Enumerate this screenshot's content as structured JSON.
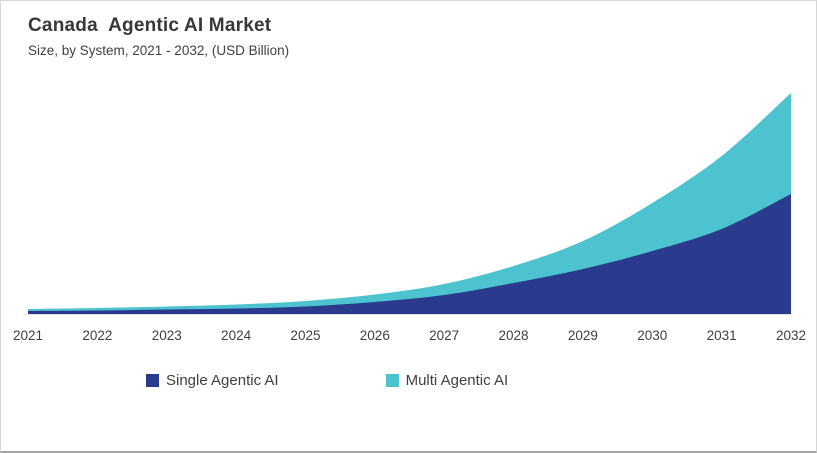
{
  "chart_data": {
    "type": "area",
    "stacked": true,
    "title": "Canada  Agentic AI Market",
    "subtitle": "Size, by System, 2021 - 2032, (USD Billion)",
    "unit": "USD Billion",
    "categories": [
      "2021",
      "2022",
      "2023",
      "2024",
      "2025",
      "2026",
      "2027",
      "2028",
      "2029",
      "2030",
      "2031",
      "2032"
    ],
    "series": [
      {
        "name": "Single Agentic AI",
        "color": "#2a3a8d",
        "values": [
          0.03,
          0.035,
          0.045,
          0.055,
          0.075,
          0.12,
          0.19,
          0.31,
          0.45,
          0.63,
          0.85,
          1.2
        ]
      },
      {
        "name": "Multi Agentic AI",
        "color": "#4cc3cf",
        "values": [
          0.02,
          0.025,
          0.03,
          0.04,
          0.055,
          0.075,
          0.11,
          0.17,
          0.28,
          0.48,
          0.73,
          1.01
        ]
      }
    ],
    "ylim": [
      0,
      2.4
    ],
    "y_axis_visible": false,
    "grid": false,
    "legend_position": "bottom",
    "text_color": "#3f3f3f"
  }
}
